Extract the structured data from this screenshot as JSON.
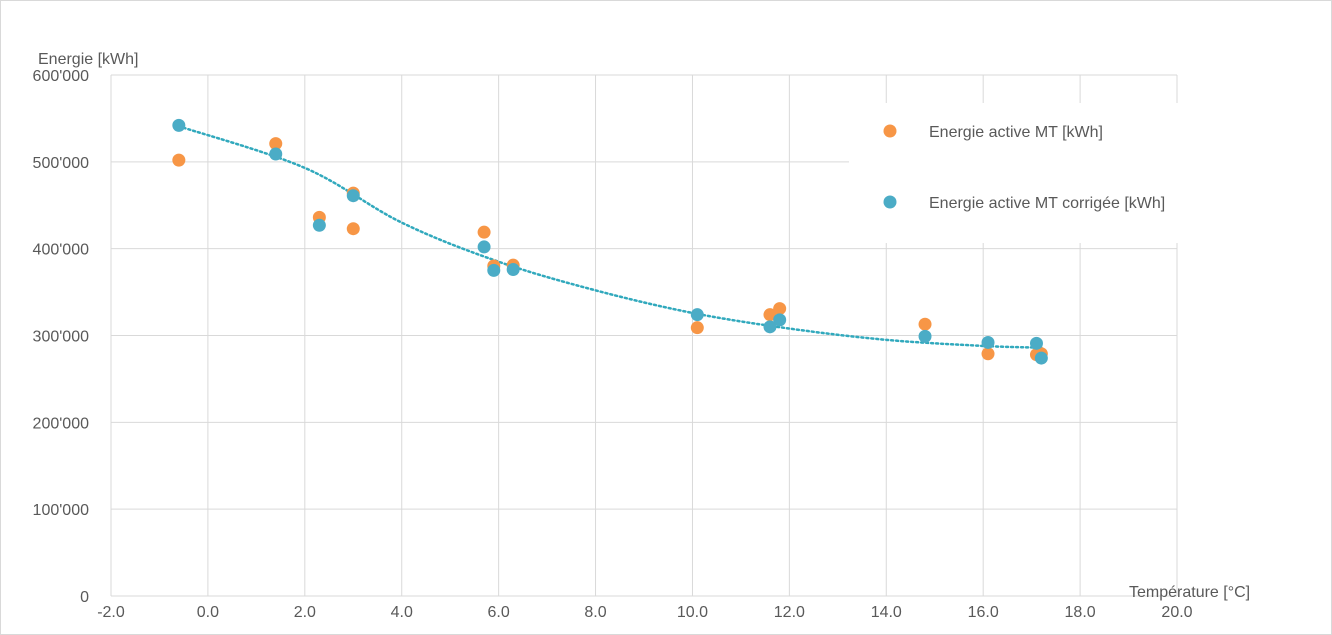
{
  "chart_data": {
    "type": "scatter",
    "xlabel": "Température [°C]",
    "ylabel": "Energie [kWh]",
    "xlim": [
      -2.0,
      20.0
    ],
    "ylim": [
      0,
      600000
    ],
    "x_ticks": [
      "-2.0",
      "0.0",
      "2.0",
      "4.0",
      "6.0",
      "8.0",
      "10.0",
      "12.0",
      "14.0",
      "16.0",
      "18.0",
      "20.0"
    ],
    "y_ticks": [
      "0",
      "100'000",
      "200'000",
      "300'000",
      "400'000",
      "500'000",
      "600'000"
    ],
    "grid": true,
    "legend_position": "top-right",
    "series": [
      {
        "name": "Energie active MT [kWh]",
        "color": "#f79646",
        "points": [
          [
            -0.6,
            502000
          ],
          [
            1.4,
            521000
          ],
          [
            2.3,
            436000
          ],
          [
            3.0,
            464000
          ],
          [
            3.0,
            423000
          ],
          [
            5.7,
            419000
          ],
          [
            5.9,
            380000
          ],
          [
            6.3,
            381000
          ],
          [
            10.1,
            309000
          ],
          [
            11.6,
            324000
          ],
          [
            11.8,
            331000
          ],
          [
            14.8,
            313000
          ],
          [
            16.1,
            279000
          ],
          [
            17.1,
            278000
          ],
          [
            17.2,
            279000
          ]
        ]
      },
      {
        "name": "Energie active MT corrigée [kWh]",
        "color": "#4bacc6",
        "points": [
          [
            -0.6,
            542000
          ],
          [
            1.4,
            509000
          ],
          [
            2.3,
            427000
          ],
          [
            3.0,
            461000
          ],
          [
            5.7,
            402000
          ],
          [
            5.9,
            375000
          ],
          [
            6.3,
            376000
          ],
          [
            10.1,
            324000
          ],
          [
            11.6,
            310000
          ],
          [
            11.8,
            318000
          ],
          [
            14.8,
            299000
          ],
          [
            16.1,
            292000
          ],
          [
            17.1,
            291000
          ],
          [
            17.2,
            274000
          ]
        ]
      }
    ],
    "trendline": {
      "type": "polynomial",
      "series": "Energie active MT corrigée [kWh]",
      "color": "#31a9bd",
      "style": "dotted",
      "x_range": [
        -0.6,
        17.2
      ],
      "points": [
        [
          -0.6,
          541000
        ],
        [
          2.0,
          493000
        ],
        [
          4.0,
          430000
        ],
        [
          6.0,
          385000
        ],
        [
          8.0,
          352000
        ],
        [
          10.0,
          326000
        ],
        [
          12.0,
          308000
        ],
        [
          14.0,
          295000
        ],
        [
          16.0,
          288000
        ],
        [
          17.2,
          286000
        ]
      ]
    }
  }
}
